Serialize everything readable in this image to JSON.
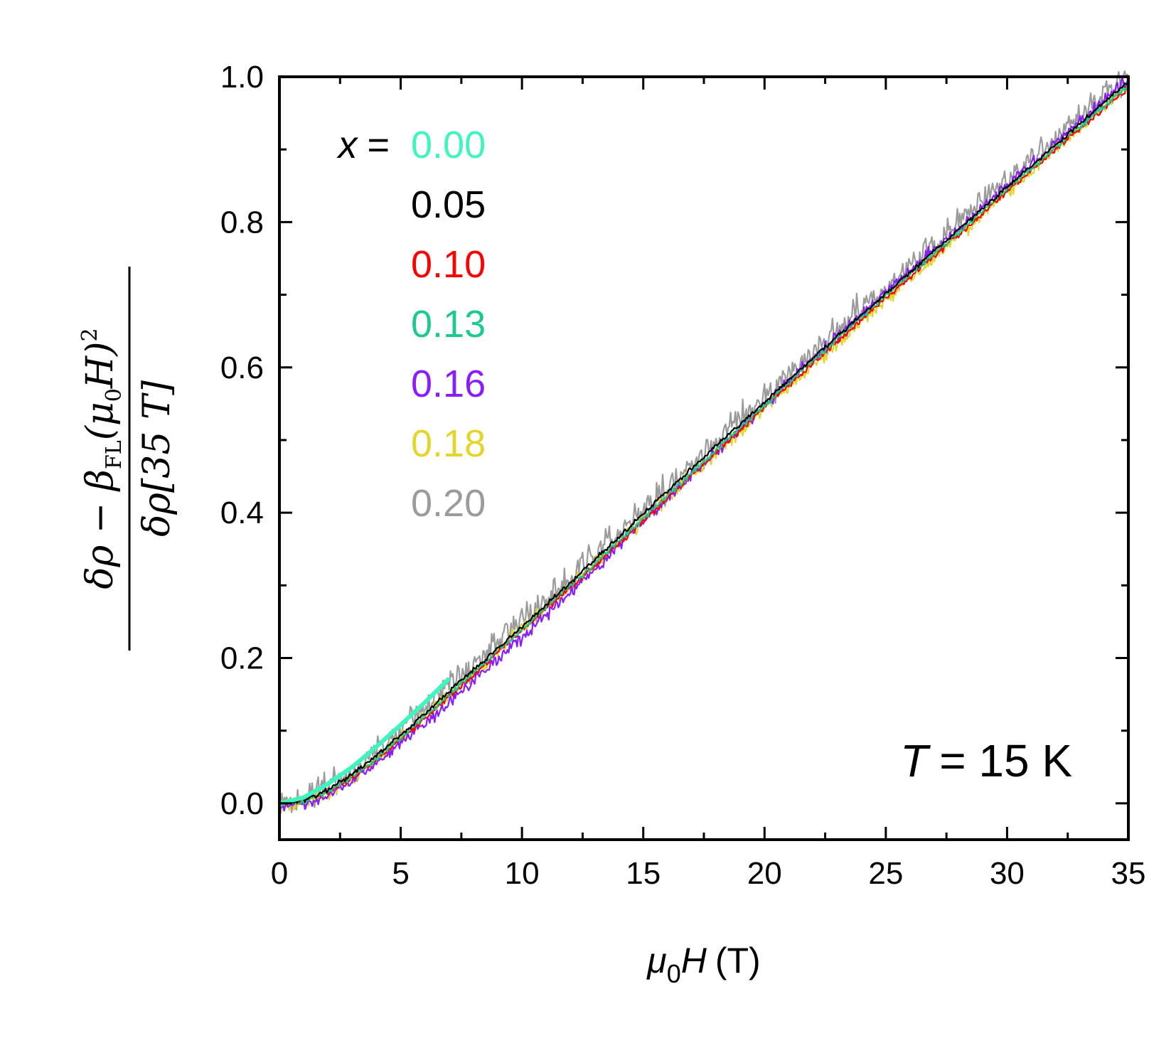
{
  "chart_data": {
    "type": "line",
    "title": "",
    "xlabel": "μ0H (T)",
    "xlabel_parts": {
      "symbol": "μ",
      "sub": "0",
      "var": "H",
      "unit": "(T)"
    },
    "ylabel_parts": {
      "numerator": "δρ − β",
      "num_sub": "FL",
      "num_tail": "(μ",
      "num_sub2": "0",
      "num_tail2": "H)",
      "num_sup": "2",
      "denominator": "δρ[35 T]"
    },
    "xlim": [
      0,
      35
    ],
    "ylim": [
      -0.05,
      1.0
    ],
    "xticks": [
      0,
      5,
      10,
      15,
      20,
      25,
      30,
      35
    ],
    "xtick_labels": [
      "0",
      "5",
      "10",
      "15",
      "20",
      "25",
      "30",
      "35"
    ],
    "yticks": [
      0.0,
      0.2,
      0.4,
      0.6,
      0.8,
      1.0
    ],
    "ytick_labels": [
      "0.0",
      "0.2",
      "0.4",
      "0.6",
      "0.8",
      "1.0"
    ],
    "legend_prefix": "x =",
    "legend_prefix_var": "x",
    "legend_prefix_eq": "=",
    "annotation": {
      "var": "T",
      "text": "= 15 K"
    },
    "series": [
      {
        "name": "0.00",
        "color": "#3ff5bf",
        "x": [
          0,
          1,
          2,
          3,
          4,
          5,
          6,
          7
        ],
        "y": [
          0.0,
          0.008,
          0.027,
          0.05,
          0.078,
          0.108,
          0.139,
          0.172
        ],
        "noise": 0.0
      },
      {
        "name": "0.05",
        "color": "#000000",
        "x": [
          0,
          1,
          2,
          3,
          4,
          5,
          6,
          7,
          8,
          10,
          12,
          14,
          16,
          18,
          20,
          22,
          24,
          26,
          28,
          30,
          32,
          34,
          35
        ],
        "y": [
          0.0,
          0.004,
          0.018,
          0.04,
          0.066,
          0.094,
          0.124,
          0.154,
          0.184,
          0.243,
          0.304,
          0.367,
          0.43,
          0.492,
          0.552,
          0.613,
          0.672,
          0.731,
          0.79,
          0.848,
          0.907,
          0.965,
          0.993
        ],
        "noise": 0.003
      },
      {
        "name": "0.10",
        "color": "#ff0000",
        "x": [
          0,
          1,
          2,
          3,
          4,
          5,
          6,
          7,
          8,
          10,
          12,
          14,
          16,
          18,
          20,
          22,
          24,
          26,
          28,
          30,
          32,
          34,
          35
        ],
        "y": [
          0.0,
          0.003,
          0.015,
          0.035,
          0.06,
          0.088,
          0.117,
          0.147,
          0.177,
          0.238,
          0.297,
          0.358,
          0.42,
          0.483,
          0.545,
          0.606,
          0.666,
          0.725,
          0.783,
          0.842,
          0.9,
          0.957,
          0.985
        ],
        "noise": 0.004
      },
      {
        "name": "0.13",
        "color": "#1ec98f",
        "x": [
          0,
          1,
          2,
          3,
          4,
          5,
          6,
          7,
          8,
          10,
          12,
          14,
          16,
          18,
          20,
          22,
          24,
          26,
          28,
          30,
          32,
          34,
          35
        ],
        "y": [
          0.0,
          0.003,
          0.016,
          0.037,
          0.062,
          0.09,
          0.12,
          0.15,
          0.18,
          0.24,
          0.3,
          0.361,
          0.424,
          0.486,
          0.548,
          0.609,
          0.669,
          0.728,
          0.786,
          0.845,
          0.903,
          0.96,
          0.988
        ],
        "noise": 0.004
      },
      {
        "name": "0.16",
        "color": "#8b1cff",
        "x": [
          0,
          1,
          2,
          3,
          4,
          5,
          6,
          7,
          8,
          10,
          12,
          14,
          16,
          18,
          20,
          22,
          24,
          26,
          28,
          30,
          32,
          34,
          35
        ],
        "y": [
          -0.005,
          0.0,
          0.012,
          0.03,
          0.055,
          0.082,
          0.11,
          0.14,
          0.17,
          0.228,
          0.29,
          0.355,
          0.42,
          0.484,
          0.548,
          0.612,
          0.673,
          0.733,
          0.792,
          0.851,
          0.91,
          0.968,
          0.995
        ],
        "noise": 0.008
      },
      {
        "name": "0.18",
        "color": "#e5d52a",
        "x": [
          0,
          1,
          2,
          3,
          4,
          5,
          6,
          7,
          8,
          10,
          12,
          14,
          16,
          18,
          20,
          22,
          24,
          26,
          28,
          30,
          32,
          34,
          35
        ],
        "y": [
          -0.005,
          0.002,
          0.015,
          0.036,
          0.062,
          0.09,
          0.12,
          0.15,
          0.18,
          0.24,
          0.3,
          0.36,
          0.42,
          0.482,
          0.543,
          0.604,
          0.664,
          0.723,
          0.782,
          0.841,
          0.9,
          0.958,
          0.99
        ],
        "noise": 0.01
      },
      {
        "name": "0.20",
        "color": "#9b9b9b",
        "x": [
          0,
          1,
          2,
          3,
          4,
          5,
          6,
          7,
          8,
          10,
          12,
          14,
          16,
          18,
          20,
          22,
          24,
          26,
          28,
          30,
          32,
          34,
          35
        ],
        "y": [
          0.0,
          0.006,
          0.022,
          0.045,
          0.072,
          0.1,
          0.13,
          0.16,
          0.19,
          0.252,
          0.313,
          0.374,
          0.436,
          0.498,
          0.56,
          0.621,
          0.681,
          0.741,
          0.8,
          0.858,
          0.915,
          0.972,
          1.0
        ],
        "noise": 0.02
      }
    ]
  }
}
